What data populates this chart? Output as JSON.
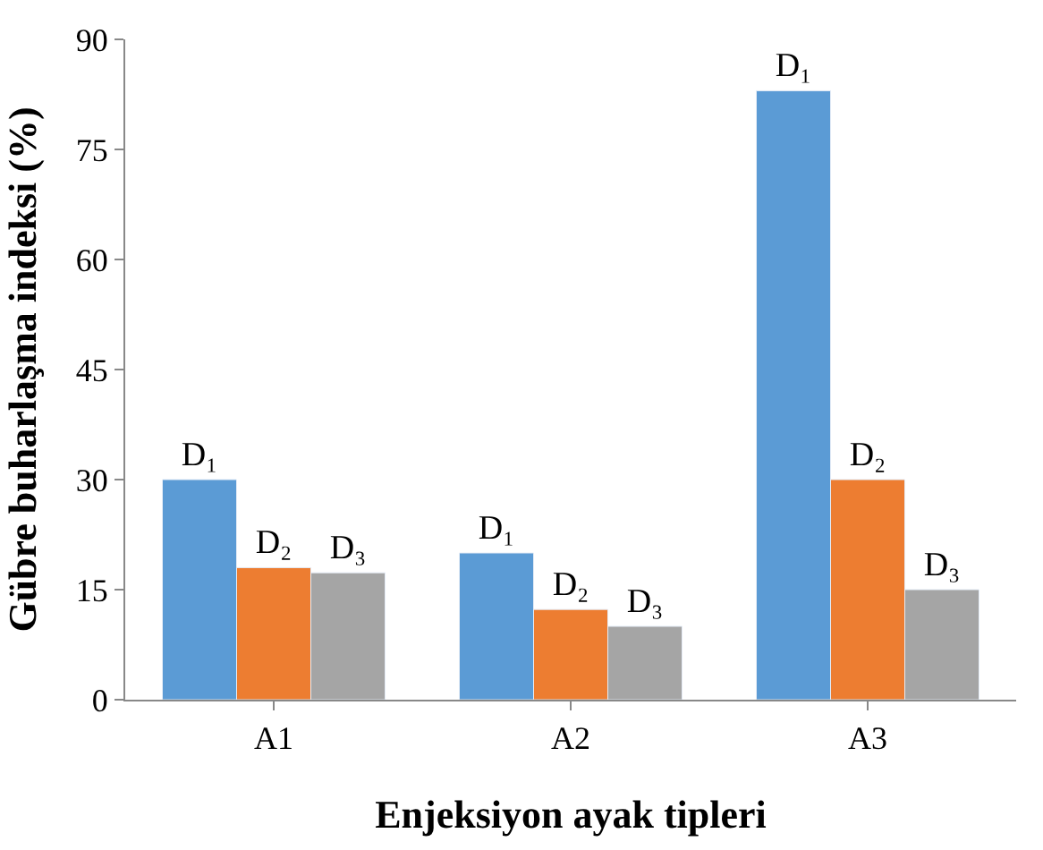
{
  "chart_data": {
    "type": "bar",
    "xlabel": "Enjeksiyon ayak tipleri",
    "ylabel": "Gübre buharlaşma indeksi (%)",
    "categories": [
      "A1",
      "A2",
      "A3"
    ],
    "series": [
      {
        "name": "D₁",
        "color": "#5b9bd5",
        "values": [
          30,
          20,
          83
        ]
      },
      {
        "name": "D₂",
        "color": "#ed7d31",
        "values": [
          18,
          12.3,
          30
        ]
      },
      {
        "name": "D₃",
        "color": "#a5a5a5",
        "values": [
          17.3,
          10,
          15
        ]
      }
    ],
    "ylim": [
      0,
      90
    ],
    "yticks": [
      0,
      15,
      30,
      45,
      60,
      75,
      90
    ],
    "legend": false
  }
}
